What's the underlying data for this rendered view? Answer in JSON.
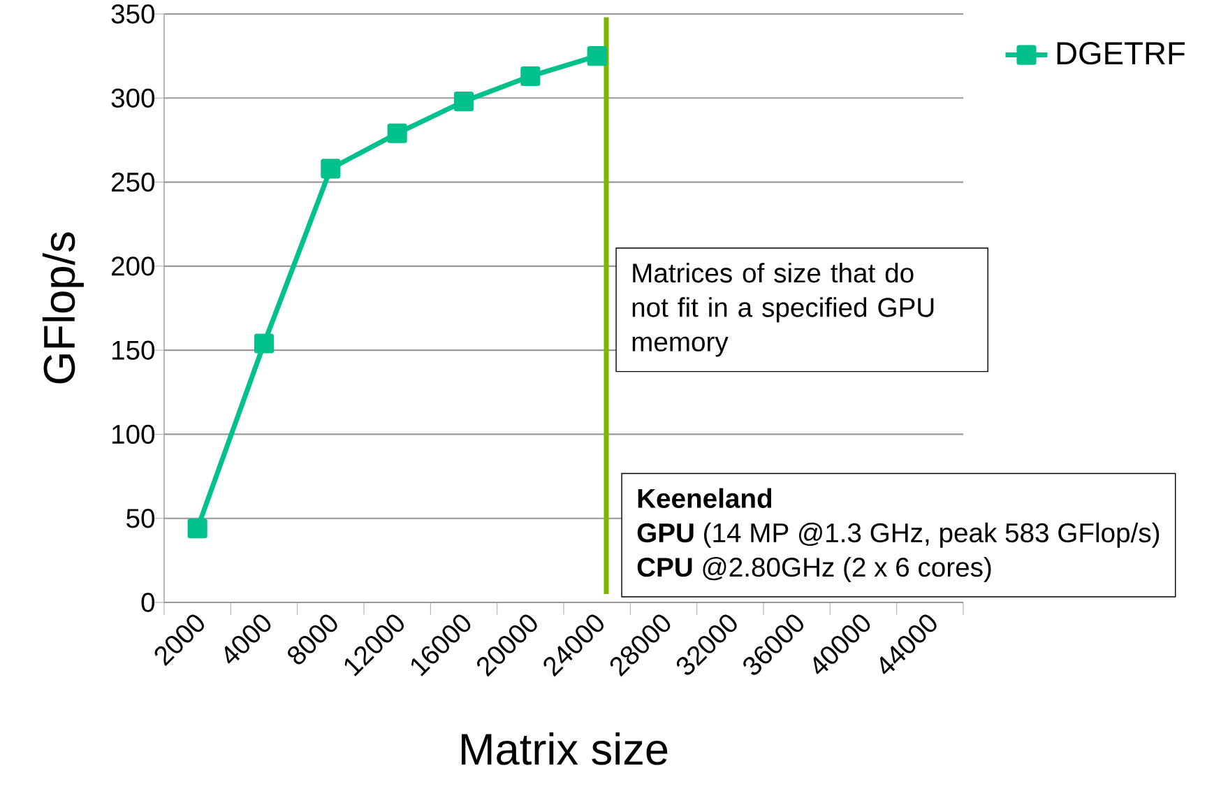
{
  "chart_data": {
    "type": "line",
    "xlabel": "Matrix size",
    "ylabel": "GFlop/s",
    "categories": [
      "2000",
      "4000",
      "8000",
      "12000",
      "16000",
      "20000",
      "24000",
      "28000",
      "32000",
      "36000",
      "40000",
      "44000"
    ],
    "series": [
      {
        "name": "DGETRF",
        "color": "#00c08b",
        "values": [
          44,
          154,
          258,
          279,
          298,
          313,
          325,
          null,
          null,
          null,
          null,
          null
        ]
      }
    ],
    "ylim": [
      0,
      350
    ],
    "yticks": [
      0,
      50,
      100,
      150,
      200,
      250,
      300,
      350
    ],
    "grid": "y",
    "legend": "top right",
    "marker": "square",
    "ref_lines": [
      {
        "axis": "x",
        "value": "24000",
        "color": "#7ab800"
      }
    ],
    "annotations": [
      "Matrices of size that do not fit in a specified GPU memory",
      "**Keeneland**",
      "**GPU** (14 MP @1.3 GHz, peak 583 GFlop/s)",
      "**CPU** @2.80GHz (2 x 6 cores)"
    ]
  }
}
